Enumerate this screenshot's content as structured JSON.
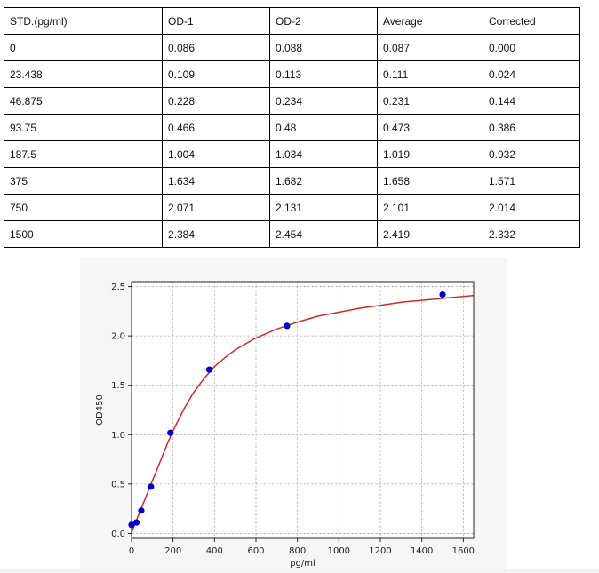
{
  "table": {
    "headers": [
      "STD.(pg/ml)",
      "OD-1",
      "OD-2",
      "Average",
      "Corrected"
    ],
    "rows": [
      [
        "0",
        "0.086",
        "0.088",
        "0.087",
        "0.000"
      ],
      [
        "23.438",
        "0.109",
        "0.113",
        "0.111",
        "0.024"
      ],
      [
        "46.875",
        "0.228",
        "0.234",
        "0.231",
        "0.144"
      ],
      [
        "93.75",
        "0.466",
        "0.48",
        "0.473",
        "0.386"
      ],
      [
        "187.5",
        "1.004",
        "1.034",
        "1.019",
        "0.932"
      ],
      [
        "375",
        "1.634",
        "1.682",
        "1.658",
        "1.571"
      ],
      [
        "750",
        "2.071",
        "2.131",
        "2.101",
        "2.014"
      ],
      [
        "1500",
        "2.384",
        "2.454",
        "2.419",
        "2.332"
      ]
    ]
  },
  "chart_data": {
    "type": "scatter",
    "title": "",
    "xlabel": "pg/ml",
    "ylabel": "OD450",
    "xlim": [
      0,
      1650
    ],
    "ylim": [
      -0.05,
      2.55
    ],
    "xticks": [
      0,
      200,
      400,
      600,
      800,
      1000,
      1200,
      1400,
      1600
    ],
    "yticks": [
      0.0,
      0.5,
      1.0,
      1.5,
      2.0,
      2.5
    ],
    "xtick_labels": [
      "0",
      "200",
      "400",
      "600",
      "800",
      "1000",
      "1200",
      "1400",
      "1600"
    ],
    "ytick_labels": [
      "0.0",
      "0.5",
      "1.0",
      "1.5",
      "2.0",
      "2.5"
    ],
    "grid": true,
    "points": {
      "x": [
        0,
        23.438,
        46.875,
        93.75,
        187.5,
        375,
        750,
        1500
      ],
      "y": [
        0.087,
        0.111,
        0.231,
        0.473,
        1.019,
        1.658,
        2.101,
        2.419
      ],
      "color": "#0000cc"
    },
    "fit_curve": {
      "color": "#d62728",
      "x": [
        0,
        25,
        50,
        75,
        100,
        125,
        150,
        175,
        200,
        250,
        300,
        350,
        400,
        450,
        500,
        600,
        700,
        800,
        900,
        1000,
        1100,
        1200,
        1300,
        1400,
        1500,
        1600,
        1650
      ],
      "y": [
        0.01,
        0.14,
        0.27,
        0.4,
        0.53,
        0.66,
        0.79,
        0.92,
        1.04,
        1.25,
        1.43,
        1.57,
        1.69,
        1.78,
        1.86,
        1.98,
        2.07,
        2.14,
        2.2,
        2.24,
        2.28,
        2.31,
        2.34,
        2.36,
        2.38,
        2.4,
        2.41
      ]
    }
  },
  "colors": {
    "points": "#0000cc",
    "curve": "#d62728",
    "panel_bg": "#f6f6f6",
    "grid": "#b0b0b0"
  }
}
